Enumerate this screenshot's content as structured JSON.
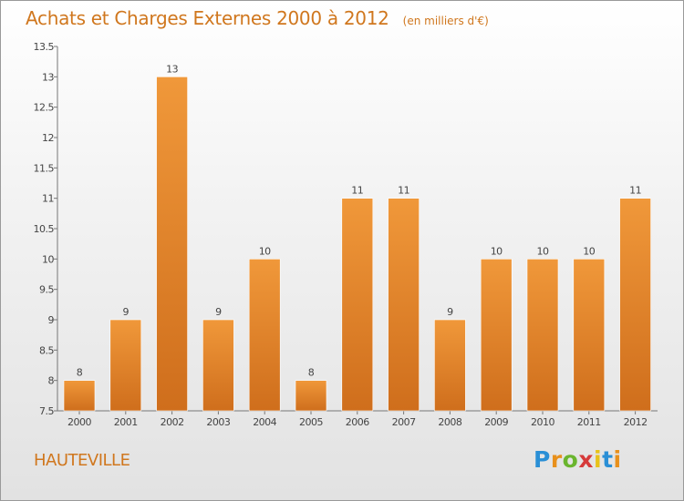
{
  "header": {
    "title": "Achats et Charges Externes 2000 à 2012",
    "unit": "(en milliers d'€)"
  },
  "footer": {
    "place": "HAUTEVILLE"
  },
  "logo": {
    "letters": [
      "P",
      "r",
      "o",
      "x",
      "i",
      "t",
      "i"
    ],
    "colors": [
      "#2a8fd6",
      "#e8901c",
      "#6ab52e",
      "#d63a3a",
      "#e8c21a",
      "#2a8fd6",
      "#e8901c"
    ]
  },
  "chart_data": {
    "type": "bar",
    "title": "Achats et Charges Externes 2000 à 2012",
    "categories": [
      "2000",
      "2001",
      "2002",
      "2003",
      "2004",
      "2005",
      "2006",
      "2007",
      "2008",
      "2009",
      "2010",
      "2011",
      "2012"
    ],
    "values": [
      8,
      9,
      13,
      9,
      10,
      8,
      11,
      11,
      9,
      10,
      10,
      10,
      11
    ],
    "data_labels": [
      "8",
      "9",
      "13",
      "9",
      "10",
      "8",
      "11",
      "11",
      "9",
      "10",
      "10",
      "10",
      "11"
    ],
    "ylim": [
      7.5,
      13.5
    ],
    "yticks": [
      7.5,
      8,
      8.5,
      9,
      9.5,
      10,
      10.5,
      11,
      11.5,
      12,
      12.5,
      13,
      13.5
    ],
    "ytick_labels": [
      "7.5",
      "8",
      "8.5",
      "9",
      "9.5",
      "10",
      "10.5",
      "11",
      "11.5",
      "12",
      "12.5",
      "13",
      "13.5"
    ],
    "grid": false,
    "bar_color": "#f0983a",
    "bar_color_dark": "#cf6e1c"
  }
}
